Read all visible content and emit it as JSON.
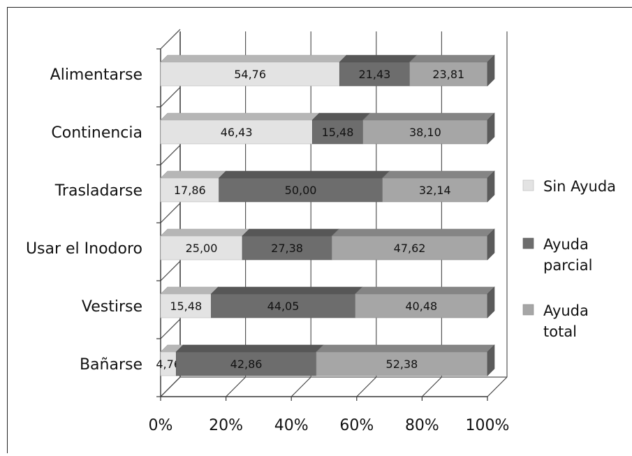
{
  "chart_data": {
    "type": "bar",
    "orientation": "horizontal",
    "stacked": "percent",
    "three_d": true,
    "categories": [
      "Alimentarse",
      "Continencia",
      "Trasladarse",
      "Usar el Inodoro",
      "Vestirse",
      "Bañarse"
    ],
    "series": [
      {
        "name": "Sin Ayuda",
        "color": "#e3e3e3",
        "values": [
          54.76,
          46.43,
          17.86,
          25.0,
          15.48,
          4.76
        ],
        "labels": [
          "54,76",
          "46,43",
          "17,86",
          "25,00",
          "15,48",
          "4,76"
        ]
      },
      {
        "name": "Ayuda parcial",
        "color": "#6d6d6d",
        "values": [
          21.43,
          15.48,
          50.0,
          27.38,
          44.05,
          42.86
        ],
        "labels": [
          "21,43",
          "15,48",
          "50,00",
          "27,38",
          "44,05",
          "42,86"
        ]
      },
      {
        "name": "Ayuda total",
        "color": "#a6a6a6",
        "values": [
          23.81,
          38.1,
          32.14,
          47.62,
          40.48,
          52.38
        ],
        "labels": [
          "23,81",
          "38,10",
          "32,14",
          "47,62",
          "40,48",
          "52,38"
        ]
      }
    ],
    "x_ticks": [
      "0%",
      "20%",
      "40%",
      "60%",
      "80%",
      "100%"
    ],
    "xlim": [
      0,
      100
    ],
    "grid": true,
    "legend_position": "right",
    "legend": [
      {
        "lines": [
          "Sin Ayuda"
        ]
      },
      {
        "lines": [
          "Ayuda",
          "parcial"
        ]
      },
      {
        "lines": [
          "Ayuda",
          "total"
        ]
      }
    ],
    "title": "",
    "xlabel": "",
    "ylabel": ""
  }
}
